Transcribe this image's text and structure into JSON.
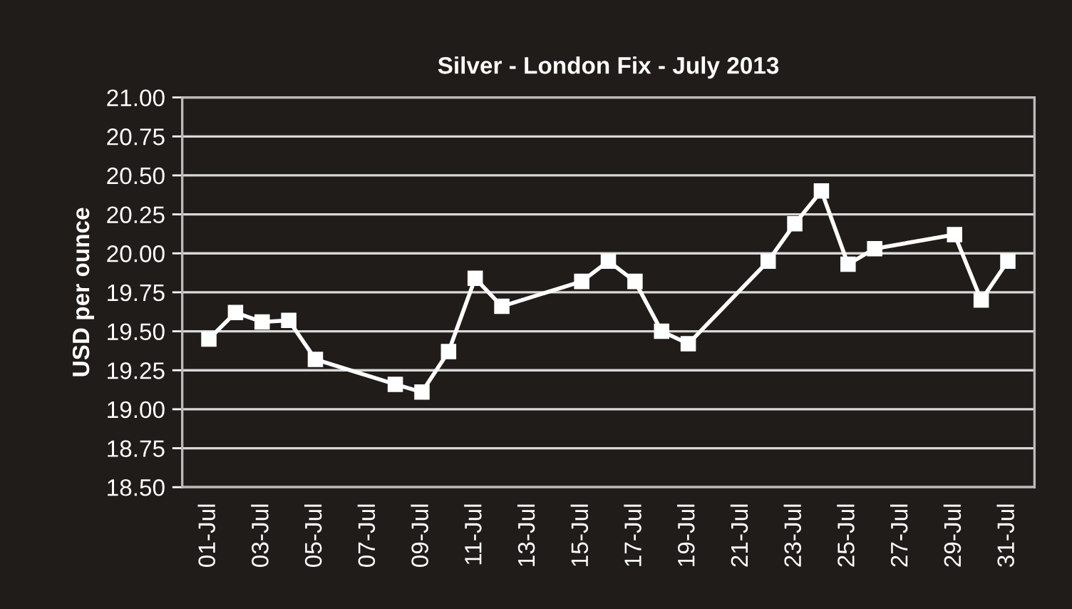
{
  "chart_data": {
    "type": "line",
    "title": "Silver - London Fix - July 2013",
    "ylabel": "USD per ounce",
    "x": [
      "2013-07-01",
      "2013-07-02",
      "2013-07-03",
      "2013-07-04",
      "2013-07-05",
      "2013-07-08",
      "2013-07-09",
      "2013-07-10",
      "2013-07-11",
      "2013-07-12",
      "2013-07-15",
      "2013-07-16",
      "2013-07-17",
      "2013-07-18",
      "2013-07-19",
      "2013-07-22",
      "2013-07-23",
      "2013-07-24",
      "2013-07-25",
      "2013-07-26",
      "2013-07-29",
      "2013-07-30",
      "2013-07-31"
    ],
    "series": [
      {
        "color": "#ffffff",
        "values": [
          19.45,
          19.62,
          19.56,
          19.57,
          19.32,
          19.16,
          19.11,
          19.37,
          19.84,
          19.66,
          19.82,
          19.95,
          19.82,
          19.5,
          19.42,
          19.95,
          20.19,
          20.4,
          19.93,
          20.03,
          20.12,
          19.7,
          19.95
        ]
      }
    ],
    "xlim": [
      "2013-06-30",
      "2013-08-01"
    ],
    "xticks": [
      {
        "value": "2013-07-01",
        "label": "01-Jul"
      },
      {
        "value": "2013-07-03",
        "label": "03-Jul"
      },
      {
        "value": "2013-07-05",
        "label": "05-Jul"
      },
      {
        "value": "2013-07-07",
        "label": "07-Jul"
      },
      {
        "value": "2013-07-09",
        "label": "09-Jul"
      },
      {
        "value": "2013-07-11",
        "label": "11-Jul"
      },
      {
        "value": "2013-07-13",
        "label": "13-Jul"
      },
      {
        "value": "2013-07-15",
        "label": "15-Jul"
      },
      {
        "value": "2013-07-17",
        "label": "17-Jul"
      },
      {
        "value": "2013-07-19",
        "label": "19-Jul"
      },
      {
        "value": "2013-07-21",
        "label": "21-Jul"
      },
      {
        "value": "2013-07-23",
        "label": "23-Jul"
      },
      {
        "value": "2013-07-25",
        "label": "25-Jul"
      },
      {
        "value": "2013-07-27",
        "label": "27-Jul"
      },
      {
        "value": "2013-07-29",
        "label": "29-Jul"
      },
      {
        "value": "2013-07-31",
        "label": "31-Jul"
      }
    ],
    "ylim": [
      18.5,
      21.0
    ],
    "yticks": [
      {
        "value": 18.5,
        "label": "18.50"
      },
      {
        "value": 18.75,
        "label": "18.75"
      },
      {
        "value": 19.0,
        "label": "19.00"
      },
      {
        "value": 19.25,
        "label": "19.25"
      },
      {
        "value": 19.5,
        "label": "19.50"
      },
      {
        "value": 19.75,
        "label": "19.75"
      },
      {
        "value": 20.0,
        "label": "20.00"
      },
      {
        "value": 20.25,
        "label": "20.25"
      },
      {
        "value": 20.5,
        "label": "20.50"
      },
      {
        "value": 20.75,
        "label": "20.75"
      },
      {
        "value": 21.0,
        "label": "21.00"
      }
    ],
    "grid": "y",
    "legend": false,
    "marker": "square",
    "line_style": "solid"
  }
}
